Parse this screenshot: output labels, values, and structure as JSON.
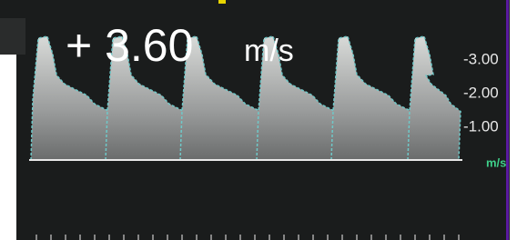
{
  "overlay": {
    "velocity": "+ 3.60",
    "unit": "m/s"
  },
  "scale": {
    "ticks": [
      "-3.00",
      "-2.00",
      "-1.00"
    ],
    "unit": "m/s"
  }
}
